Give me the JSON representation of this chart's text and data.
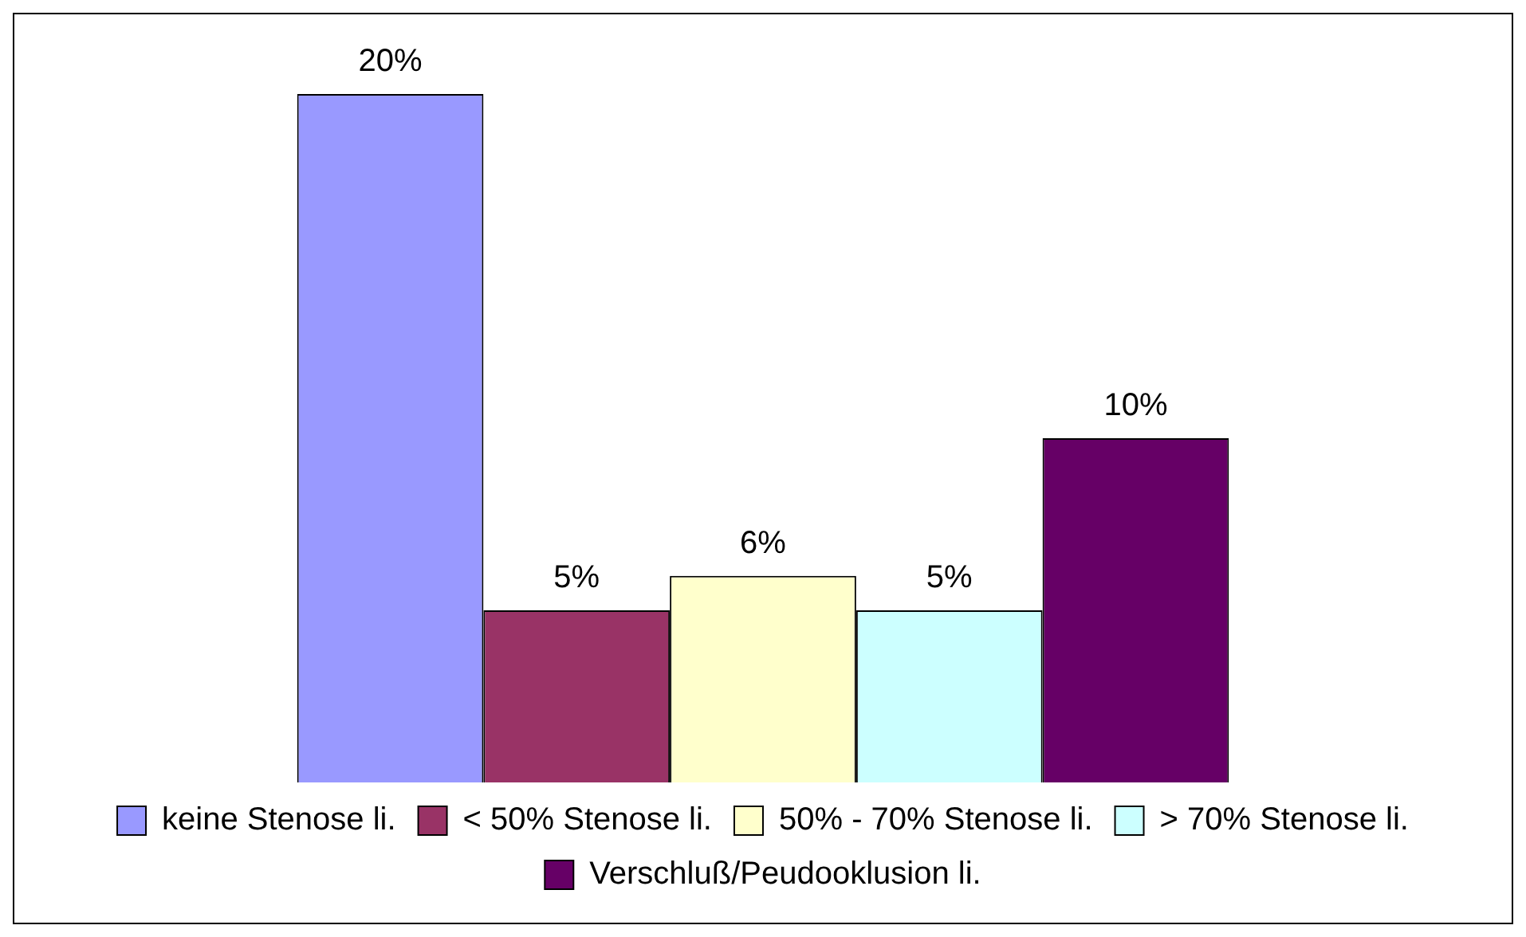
{
  "chart_data": {
    "type": "bar",
    "categories": [
      null
    ],
    "legend": "bottom",
    "series": [
      {
        "name": "keine Stenose li.",
        "color": "#9999ff",
        "values": [
          20
        ],
        "value_labels": [
          "20%"
        ]
      },
      {
        "name": "< 50% Stenose li.",
        "color": "#993366",
        "values": [
          5
        ],
        "value_labels": [
          "5%"
        ]
      },
      {
        "name": "50% - 70% Stenose li.",
        "color": "#ffffcc",
        "values": [
          6
        ],
        "value_labels": [
          "6%"
        ]
      },
      {
        "name": "> 70% Stenose li.",
        "color": "#ccffff",
        "values": [
          5
        ],
        "value_labels": [
          "5%"
        ]
      },
      {
        "name": "Verschluß/Peudooklusion li.",
        "color": "#660066",
        "values": [
          10
        ],
        "value_labels": [
          "10%"
        ]
      }
    ]
  }
}
